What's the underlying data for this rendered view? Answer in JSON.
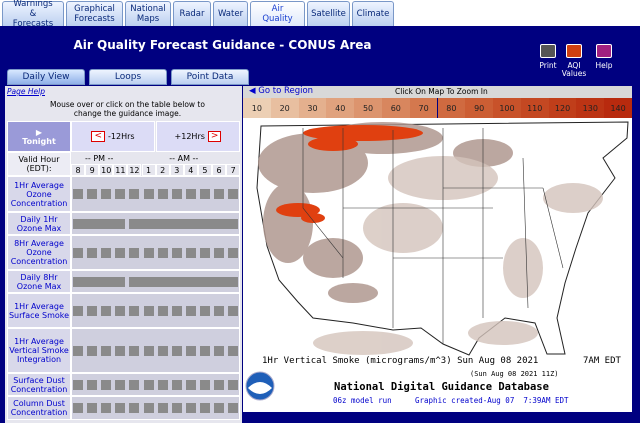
{
  "nav_tabs": [
    {
      "label": "Warnings & Forecasts",
      "active": false
    },
    {
      "label": "Graphical Forecasts",
      "active": false
    },
    {
      "label": "National Maps",
      "active": false
    },
    {
      "label": "Radar",
      "active": false
    },
    {
      "label": "Water",
      "active": false
    },
    {
      "label": "Air Quality",
      "active": true
    },
    {
      "label": "Satellite",
      "active": false
    },
    {
      "label": "Climate",
      "active": false
    }
  ],
  "header": {
    "title": "Air Quality Forecast Guidance - CONUS Area",
    "icons": [
      "Print",
      "AQI Values",
      "Help"
    ]
  },
  "sub_tabs": [
    "Daily View",
    "Loops",
    "Point Data"
  ],
  "page_help": "Page Help",
  "instructions": "Mouse over or click on the table below to change the guidance image.",
  "table": {
    "tonight": "Tonight",
    "prev": "-12Hrs",
    "next": "+12Hrs",
    "valid_hour": "Valid Hour (EDT):",
    "pm": "-- PM --",
    "am": "-- AM --",
    "hours": [
      8,
      9,
      10,
      11,
      12,
      1,
      2,
      3,
      4,
      5,
      6,
      7
    ],
    "rows": [
      {
        "label": "1Hr Average Ozone Concentration",
        "daily": false
      },
      {
        "label": "Daily 1Hr Ozone Max",
        "daily": true
      },
      {
        "label": "8Hr Average Ozone Concentration",
        "daily": false
      },
      {
        "label": "Daily 8Hr Ozone Max",
        "daily": true
      },
      {
        "label": "1Hr Average Surface Smoke",
        "daily": false
      },
      {
        "label": "1Hr Average Vertical Smoke Integration",
        "daily": false
      },
      {
        "label": "Surface Dust Concentration",
        "daily": false
      },
      {
        "label": "Column Dust Concentration",
        "daily": false
      }
    ]
  },
  "map": {
    "go_to_region": "Go to Region",
    "zoom_hint": "Click On Map To Zoom In",
    "scale": [
      {
        "value": 10,
        "color": "#eccfb4"
      },
      {
        "value": 20,
        "color": "#e8bfa0"
      },
      {
        "value": 30,
        "color": "#e4b08e"
      },
      {
        "value": 40,
        "color": "#e0a27e"
      },
      {
        "value": 50,
        "color": "#dc946e"
      },
      {
        "value": 60,
        "color": "#d8865e"
      },
      {
        "value": 70,
        "color": "#d4784e"
      },
      {
        "value": 80,
        "color": "#d06a40"
      },
      {
        "value": 90,
        "color": "#cc5e34"
      },
      {
        "value": 100,
        "color": "#c8522a"
      },
      {
        "value": 110,
        "color": "#c44822"
      },
      {
        "value": 120,
        "color": "#c03e1a"
      },
      {
        "value": 130,
        "color": "#bc3414"
      },
      {
        "value": 140,
        "color": "#b82a0e"
      }
    ],
    "caption": "1Hr Vertical Smoke (micrograms/m^3) Sun Aug 08 2021",
    "caption_time": "7AM EDT",
    "valid_z": "(Sun Aug 08 2021 11Z)",
    "database": "National Digital Guidance Database",
    "model_run": "06z model run",
    "created": "Graphic created-Aug 07  7:39AM EDT"
  }
}
